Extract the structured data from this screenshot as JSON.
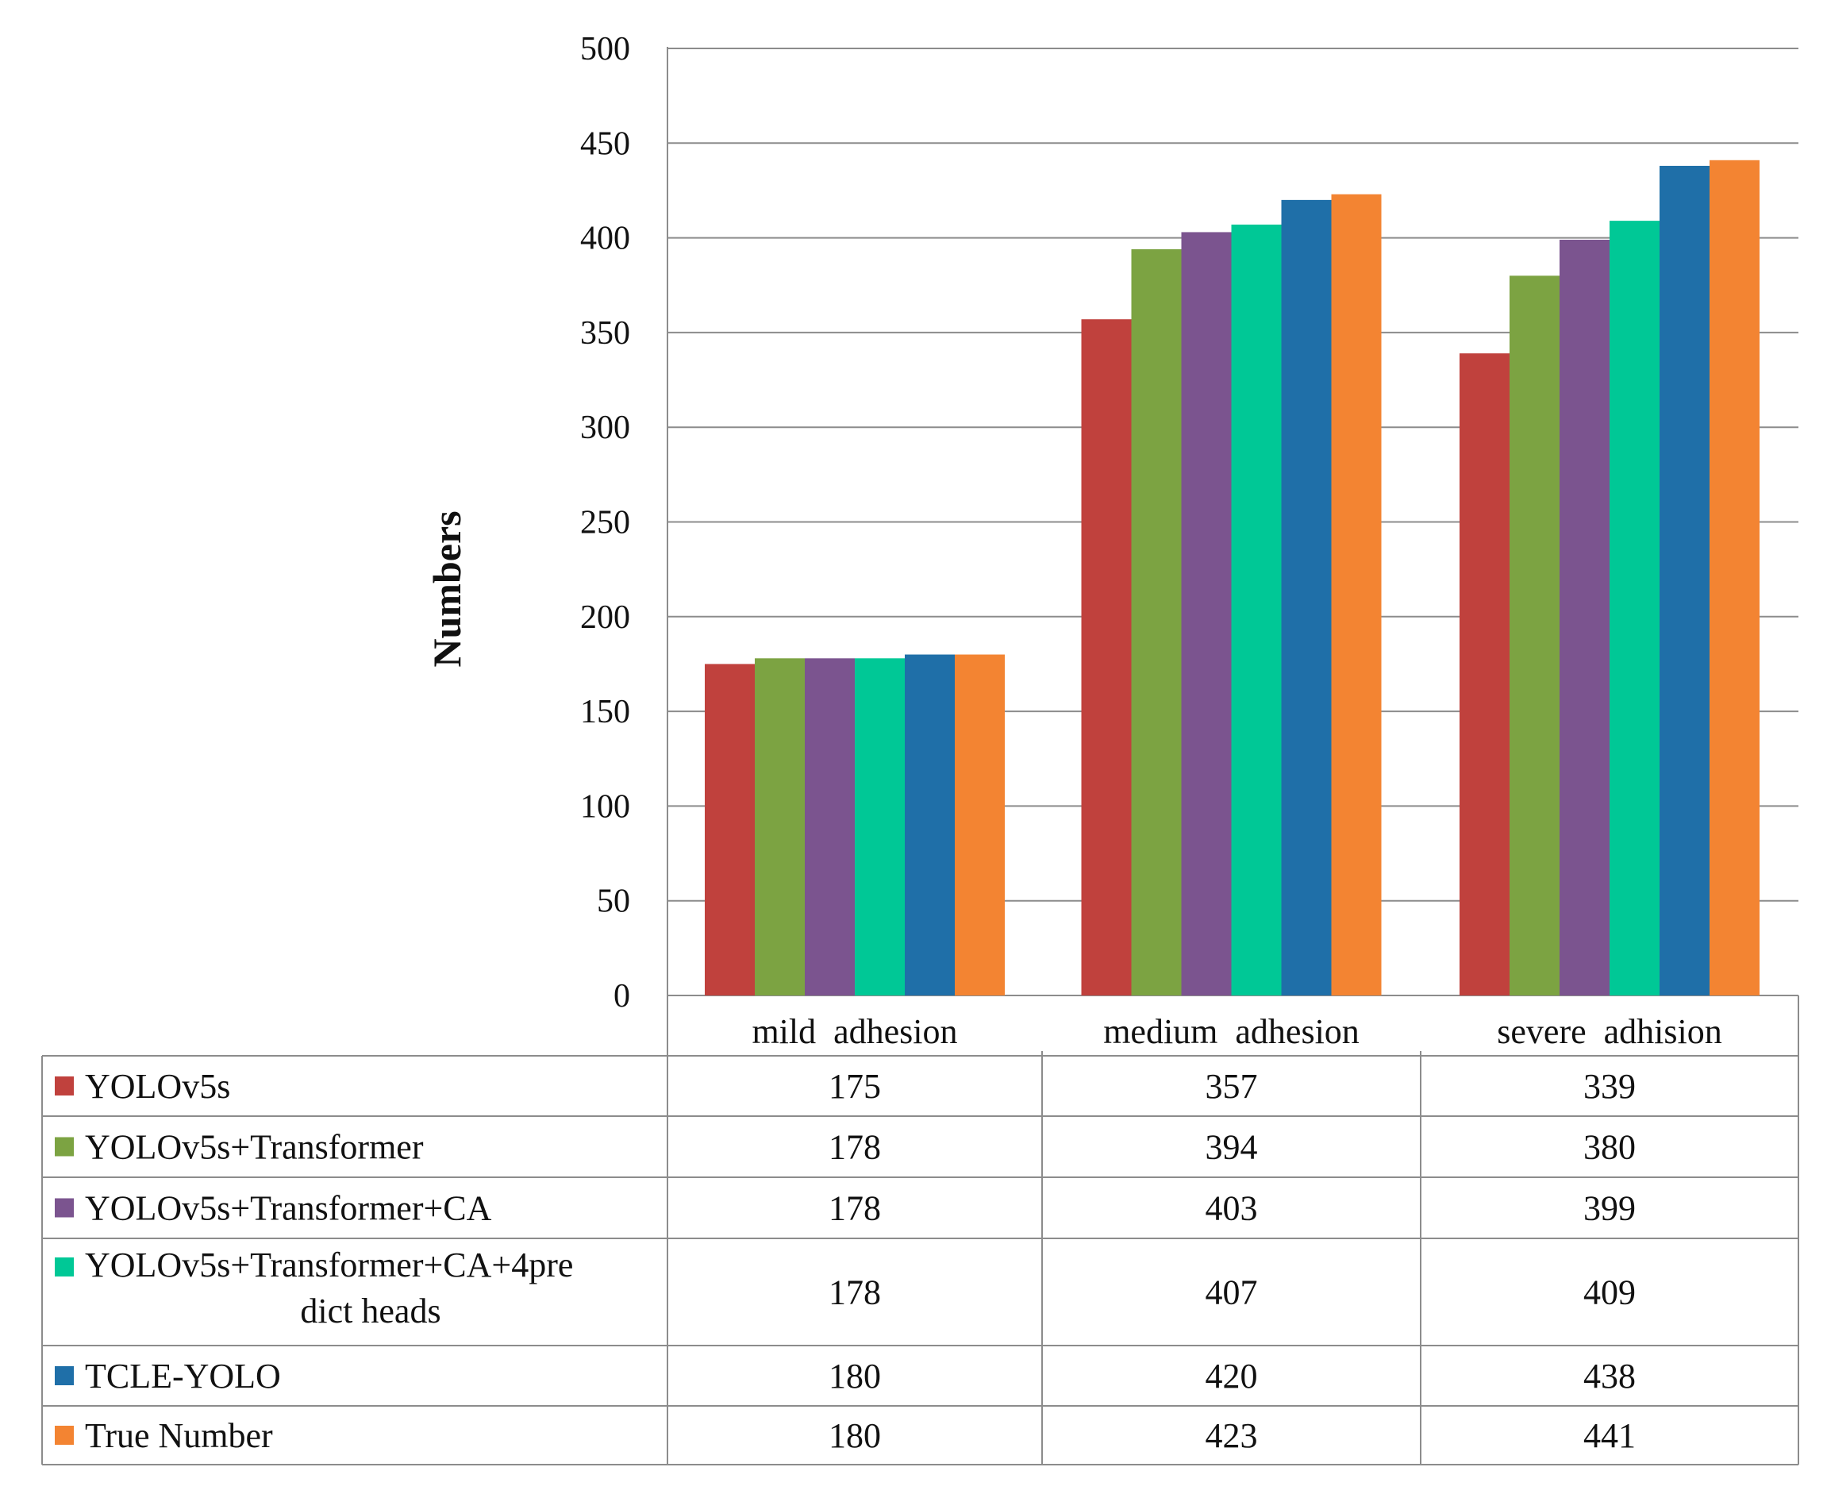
{
  "chart_data": {
    "type": "bar",
    "title": "",
    "xlabel": "",
    "ylabel": "Numbers",
    "ylim": [
      0,
      500
    ],
    "yticks": [
      0,
      50,
      100,
      150,
      200,
      250,
      300,
      350,
      400,
      450,
      500
    ],
    "grid": true,
    "legend": "data-table-below",
    "categories": [
      "mild  adhesion",
      "medium  adhesion",
      "severe  adhision"
    ],
    "series": [
      {
        "name": "YOLOv5s",
        "values": [
          175,
          357,
          339
        ],
        "color": "#C0413D"
      },
      {
        "name": "YOLOv5s+Transformer",
        "values": [
          178,
          394,
          380
        ],
        "color": "#7CA342"
      },
      {
        "name": "YOLOv5s+Transformer+CA",
        "values": [
          178,
          403,
          399
        ],
        "color": "#7B548F"
      },
      {
        "name": "YOLOv5s+Transformer+CA+4predict heads",
        "name_lines": [
          "YOLOv5s+Transformer+CA+4pre",
          "dict heads"
        ],
        "values": [
          178,
          407,
          409
        ],
        "color": "#00C896"
      },
      {
        "name": "TCLE-YOLO",
        "values": [
          180,
          420,
          438
        ],
        "color": "#1F6FA8"
      },
      {
        "name": "True Number",
        "values": [
          180,
          423,
          441
        ],
        "color": "#F38432"
      }
    ]
  }
}
